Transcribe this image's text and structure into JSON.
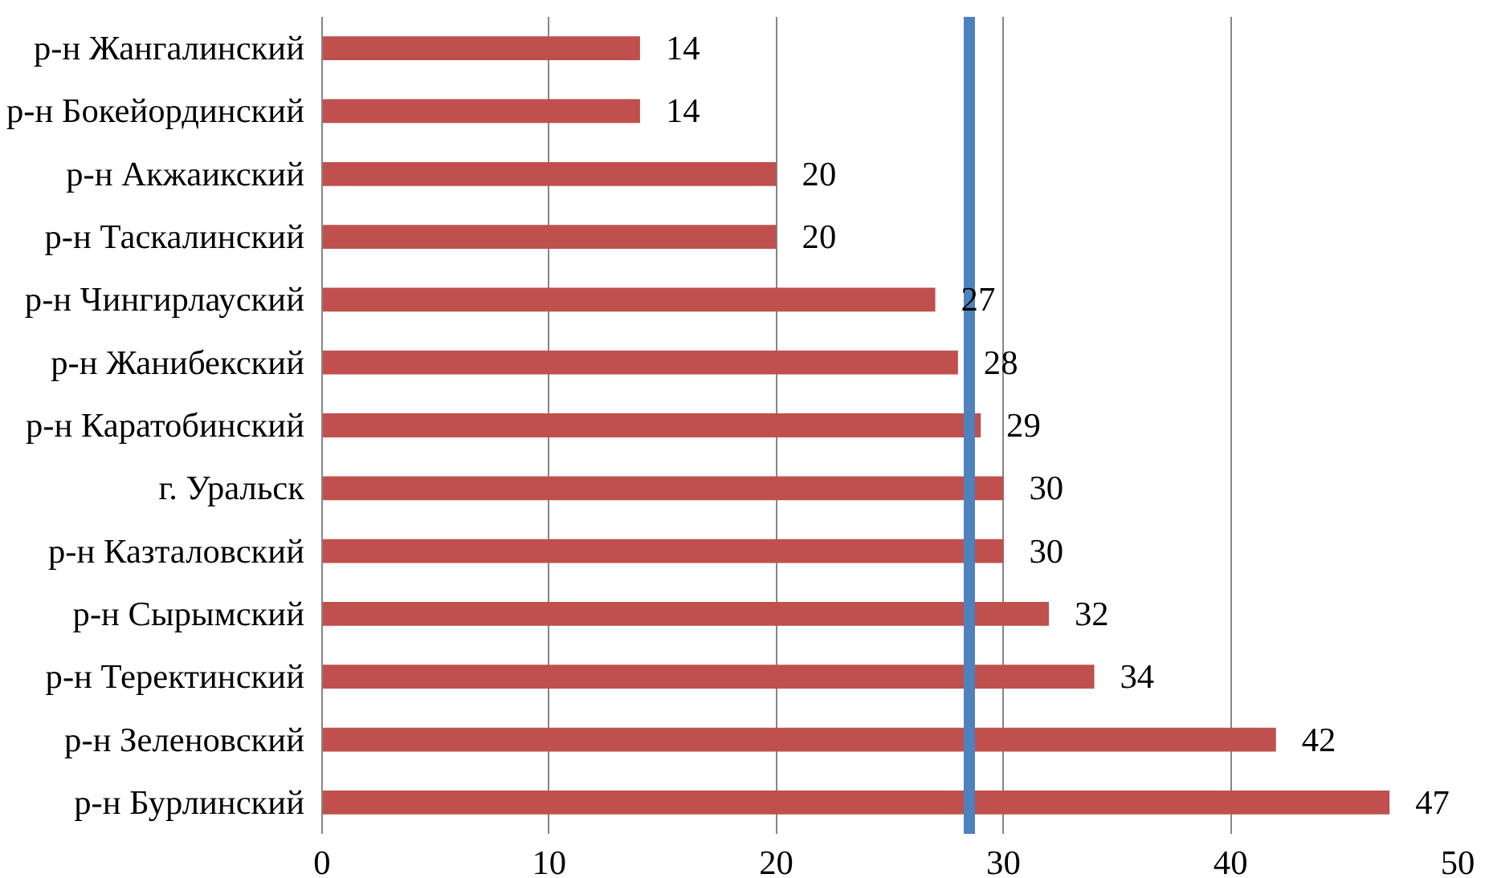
{
  "chart_data": {
    "type": "bar",
    "orientation": "horizontal",
    "categories": [
      "р-н Жангалинский",
      "р-н Бокейординский",
      "р-н Акжаикский",
      "р-н Таскалинский",
      "р-н Чингирлауский",
      "р-н Жанибекский",
      "р-н Каратобинский",
      "г. Уральск",
      "р-н Казталовский",
      "р-н Сырымский",
      "р-н Теректинский",
      "р-н Зеленовский",
      "р-н Бурлинский"
    ],
    "values": [
      14,
      14,
      20,
      20,
      27,
      28,
      29,
      30,
      30,
      32,
      34,
      42,
      47
    ],
    "color": "#c0504d",
    "data_labels": true,
    "xlim": [
      0,
      50
    ],
    "xticks": [
      0,
      10,
      20,
      30,
      40,
      50
    ],
    "grid": "x",
    "ref_lines": [
      {
        "axis": "x",
        "value": 28.5,
        "label": null,
        "color": "#4f81bd"
      }
    ]
  }
}
